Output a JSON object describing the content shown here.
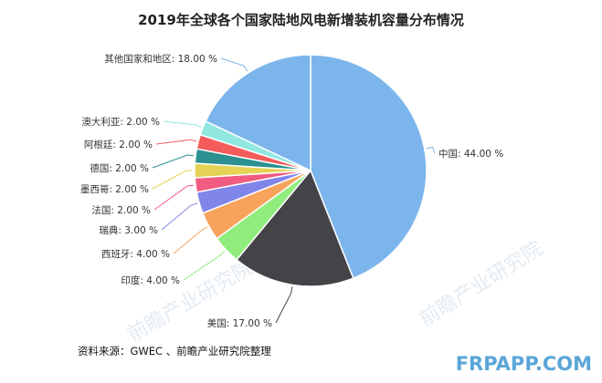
{
  "chart_data": {
    "type": "pie",
    "title": "2019年全球各个国家陆地风电新增装机容量分布情况",
    "unit": "%",
    "slices": [
      {
        "name": "中国",
        "value": 44.0,
        "label": "中国: 44.00 %",
        "color": "#7cb5ec"
      },
      {
        "name": "美国",
        "value": 17.0,
        "label": "美国: 17.00 %",
        "color": "#434348"
      },
      {
        "name": "印度",
        "value": 4.0,
        "label": "印度: 4.00 %",
        "color": "#90ed7d"
      },
      {
        "name": "西班牙",
        "value": 4.0,
        "label": "西班牙: 4.00 %",
        "color": "#f7a35c"
      },
      {
        "name": "瑞典",
        "value": 3.0,
        "label": "瑞典: 3.00 %",
        "color": "#8085e9"
      },
      {
        "name": "法国",
        "value": 2.0,
        "label": "法国: 2.00 %",
        "color": "#f15c80"
      },
      {
        "name": "墨西哥",
        "value": 2.0,
        "label": "墨西哥: 2.00 %",
        "color": "#e4d354"
      },
      {
        "name": "德国",
        "value": 2.0,
        "label": "德国: 2.00 %",
        "color": "#2b908f"
      },
      {
        "name": "阿根廷",
        "value": 2.0,
        "label": "阿根廷: 2.00 %",
        "color": "#f45b5b"
      },
      {
        "name": "澳大利亚",
        "value": 2.0,
        "label": "澳大利亚: 2.00 %",
        "color": "#91e8e1"
      },
      {
        "name": "其他国家和地区",
        "value": 18.0,
        "label": "其他国家和地区: 18.00 %",
        "color": "#7cb5ec"
      }
    ],
    "legend": "none"
  },
  "source": "资料来源：GWEC 、前瞻产业研究院整理",
  "watermark": {
    "text": "前瞻产业研究院",
    "site": "FRPAPP.COM"
  }
}
